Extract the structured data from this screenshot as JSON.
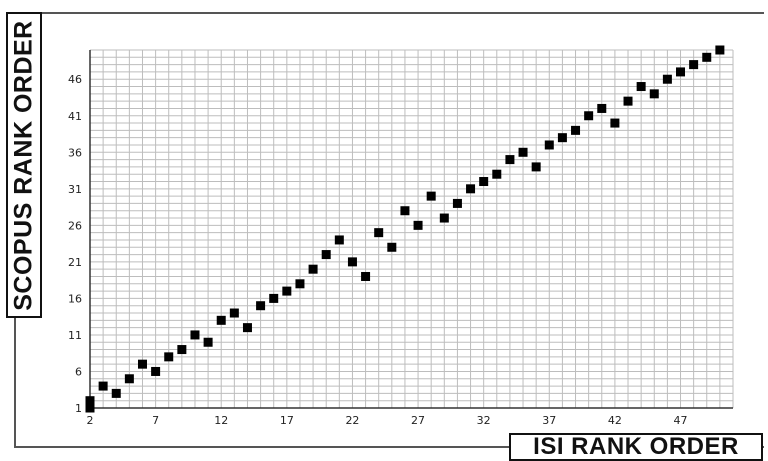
{
  "chart_data": {
    "type": "scatter",
    "xlabel": "ISI RANK ORDER",
    "ylabel": "SCOPUS RANK ORDER",
    "xlim": [
      2,
      51
    ],
    "ylim": [
      1,
      50
    ],
    "xticks": [
      2,
      7,
      12,
      17,
      22,
      27,
      32,
      37,
      42,
      47
    ],
    "yticks": [
      1,
      6,
      11,
      16,
      21,
      26,
      31,
      36,
      41,
      46
    ],
    "grid": true,
    "series": [
      {
        "color": "#000000",
        "marker": "square",
        "points": [
          [
            2,
            1
          ],
          [
            2,
            2
          ],
          [
            3,
            4
          ],
          [
            4,
            3
          ],
          [
            5,
            5
          ],
          [
            6,
            7
          ],
          [
            7,
            6
          ],
          [
            8,
            8
          ],
          [
            9,
            9
          ],
          [
            10,
            11
          ],
          [
            11,
            10
          ],
          [
            12,
            13
          ],
          [
            13,
            14
          ],
          [
            14,
            12
          ],
          [
            15,
            15
          ],
          [
            16,
            16
          ],
          [
            17,
            17
          ],
          [
            18,
            18
          ],
          [
            19,
            20
          ],
          [
            20,
            22
          ],
          [
            21,
            24
          ],
          [
            22,
            21
          ],
          [
            23,
            19
          ],
          [
            24,
            25
          ],
          [
            25,
            23
          ],
          [
            26,
            28
          ],
          [
            27,
            26
          ],
          [
            28,
            30
          ],
          [
            29,
            27
          ],
          [
            30,
            29
          ],
          [
            31,
            31
          ],
          [
            32,
            32
          ],
          [
            33,
            33
          ],
          [
            34,
            35
          ],
          [
            35,
            36
          ],
          [
            36,
            34
          ],
          [
            37,
            37
          ],
          [
            38,
            38
          ],
          [
            39,
            39
          ],
          [
            40,
            41
          ],
          [
            41,
            42
          ],
          [
            42,
            40
          ],
          [
            43,
            43
          ],
          [
            44,
            45
          ],
          [
            45,
            44
          ],
          [
            46,
            46
          ],
          [
            47,
            47
          ],
          [
            48,
            48
          ],
          [
            49,
            49
          ],
          [
            50,
            50
          ]
        ]
      }
    ]
  }
}
